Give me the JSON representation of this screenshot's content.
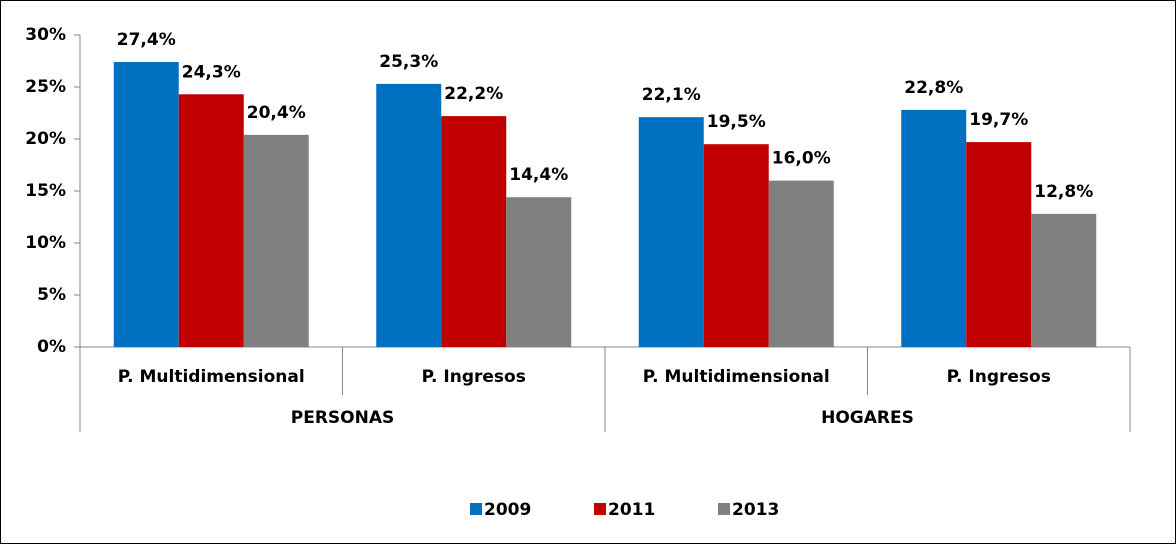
{
  "chart_data": {
    "type": "bar",
    "groups": [
      {
        "name": "PERSONAS",
        "categories": [
          "P. Multidimensional",
          "P. Ingresos"
        ]
      },
      {
        "name": "HOGARES",
        "categories": [
          "P. Multidimensional",
          "P. Ingresos"
        ]
      }
    ],
    "series": [
      {
        "name": "2009",
        "color": "#0070c0",
        "values": [
          27.4,
          25.3,
          22.1,
          22.8
        ],
        "value_labels": [
          "27,4%",
          "25,3%",
          "22,1%",
          "22,8%"
        ]
      },
      {
        "name": "2011",
        "color": "#c00000",
        "values": [
          24.3,
          22.2,
          19.5,
          19.7
        ],
        "value_labels": [
          "24,3%",
          "22,2%",
          "19,5%",
          "19,7%"
        ]
      },
      {
        "name": "2013",
        "color": "#808080",
        "values": [
          20.4,
          14.4,
          16.0,
          12.8
        ],
        "value_labels": [
          "20,4%",
          "14,4%",
          "16,0%",
          "12,8%"
        ]
      }
    ],
    "ylim": [
      0,
      30
    ],
    "yticks": [
      {
        "value": 0,
        "label": "0%"
      },
      {
        "value": 5,
        "label": "5%"
      },
      {
        "value": 10,
        "label": "10%"
      },
      {
        "value": 15,
        "label": "15%"
      },
      {
        "value": 20,
        "label": "20%"
      },
      {
        "value": 25,
        "label": "25%"
      },
      {
        "value": 30,
        "label": "30%"
      }
    ],
    "legend": "bottom"
  }
}
